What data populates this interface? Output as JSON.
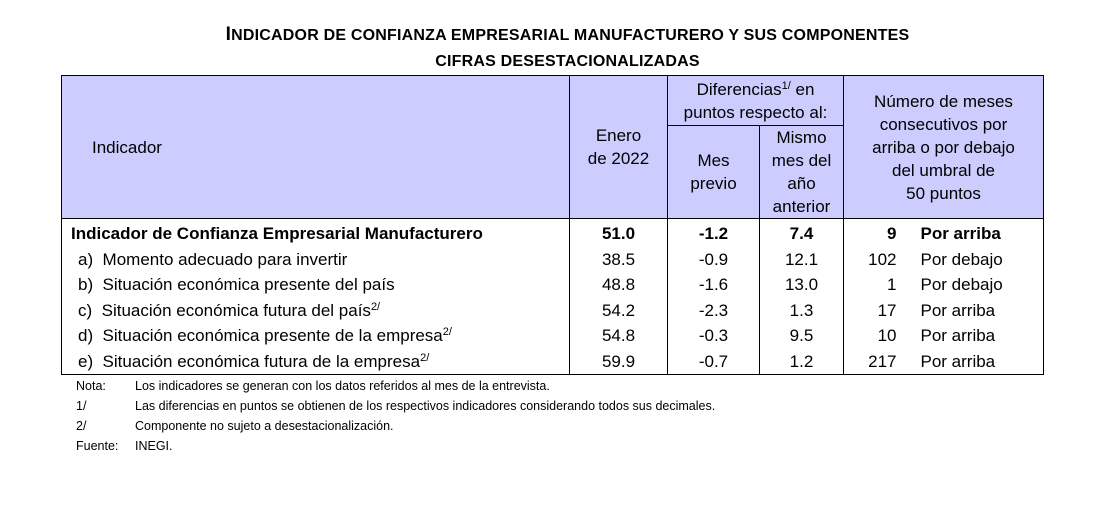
{
  "title": {
    "line1_initial": "I",
    "line1_rest": "NDICADOR DE CONFIANZA EMPRESARIAL MANUFACTURERO Y SUS COMPONENTES",
    "line2": "CIFRAS DESESTACIONALIZADAS"
  },
  "header": {
    "indicador": "Indicador",
    "enero_line1": "Enero",
    "enero_line2": "de 2022",
    "dif_line1": "Diferencias",
    "dif_sup": "1/",
    "dif_line1_end": " en",
    "dif_line2": "puntos respecto al:",
    "mes_line1": "Mes",
    "mes_line2": "previo",
    "mismo_line1": "Mismo",
    "mismo_line2": "mes del",
    "mismo_line3": "año",
    "mismo_line4": "anterior",
    "meses_line1": "Número de meses",
    "meses_line2": "consecutivos por",
    "meses_line3": "arriba o por debajo",
    "meses_line4": "del umbral de",
    "meses_line5": "50 puntos"
  },
  "rows": [
    {
      "label": "Indicador de Confianza Empresarial Manufacturero",
      "sup": "",
      "enero": "51.0",
      "mes_previo": "-1.2",
      "mismo_mes": "7.4",
      "meses": "9",
      "estado": "Por arriba"
    },
    {
      "label": "a)  Momento adecuado para invertir",
      "sup": "",
      "enero": "38.5",
      "mes_previo": "-0.9",
      "mismo_mes": "12.1",
      "meses": "102",
      "estado": "Por debajo"
    },
    {
      "label": "b)  Situación económica presente del país",
      "sup": "",
      "enero": "48.8",
      "mes_previo": "-1.6",
      "mismo_mes": "13.0",
      "meses": "1",
      "estado": "Por debajo"
    },
    {
      "label": "c)  Situación económica futura del país",
      "sup": "2/",
      "enero": "54.2",
      "mes_previo": "-2.3",
      "mismo_mes": "1.3",
      "meses": "17",
      "estado": "Por arriba"
    },
    {
      "label": "d)  Situación económica presente de la empresa",
      "sup": "2/",
      "enero": "54.8",
      "mes_previo": "-0.3",
      "mismo_mes": "9.5",
      "meses": "10",
      "estado": "Por arriba"
    },
    {
      "label": "e)  Situación económica futura de la empresa",
      "sup": "2/",
      "enero": "59.9",
      "mes_previo": "-0.7",
      "mismo_mes": "1.2",
      "meses": "217",
      "estado": "Por arriba"
    }
  ],
  "notes": [
    {
      "key": "Nota:",
      "text": "Los indicadores se generan con los datos referidos al mes de la entrevista."
    },
    {
      "key": "1/",
      "text": "Las diferencias en puntos se obtienen de los respectivos indicadores considerando todos sus decimales."
    },
    {
      "key": "2/",
      "text": "Componente no sujeto a desestacionalización."
    },
    {
      "key": "Fuente:",
      "text": "INEGI."
    }
  ],
  "colors": {
    "header_bg": "#ccccff"
  }
}
